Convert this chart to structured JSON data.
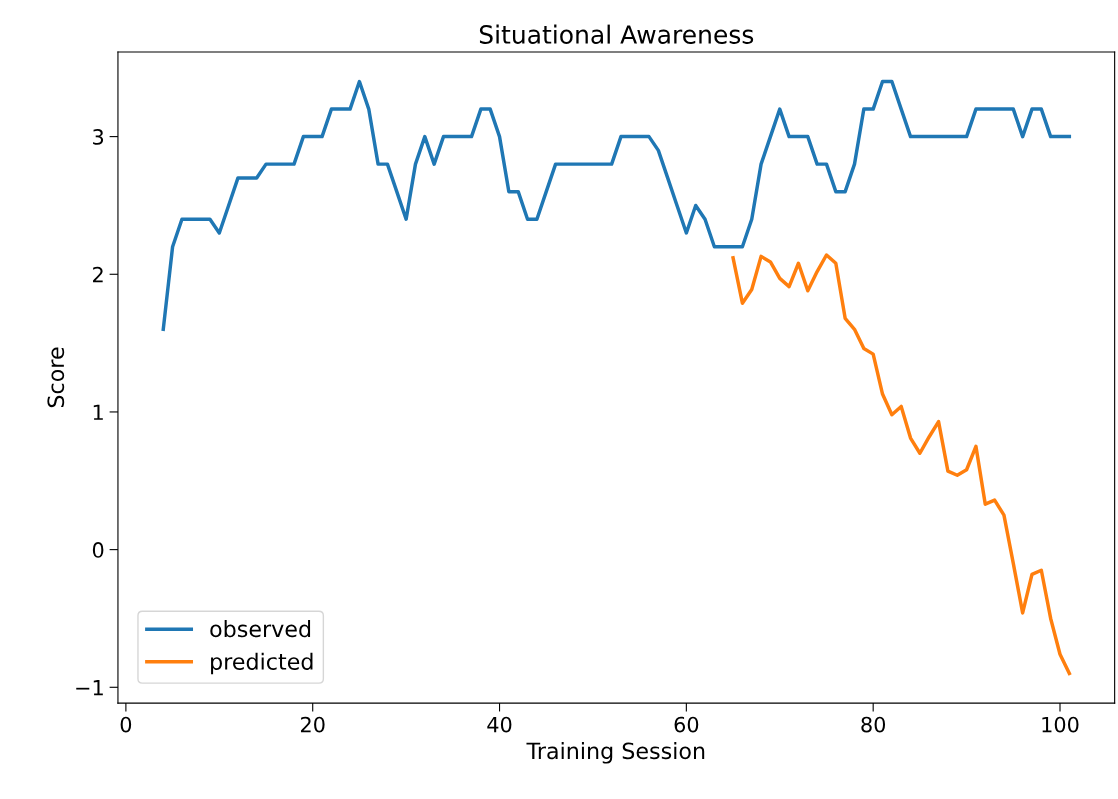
{
  "chart_data": {
    "type": "line",
    "title": "Situational Awareness",
    "xlabel": "Training Session",
    "ylabel": "Score",
    "xlim": [
      -0.85,
      105.85
    ],
    "xticks": [
      0,
      20,
      40,
      60,
      80,
      100
    ],
    "ylim": [
      -1.115,
      3.615
    ],
    "yticks": [
      {
        "value": -1,
        "label": "−1"
      },
      0,
      1,
      2,
      3
    ],
    "legend": "bottom left",
    "grid": false,
    "series": [
      {
        "name": "observed",
        "color": "#1f77b4",
        "x": [
          4,
          5,
          6,
          7,
          8,
          9,
          10,
          11,
          12,
          13,
          14,
          15,
          16,
          17,
          18,
          19,
          20,
          21,
          22,
          23,
          24,
          25,
          26,
          27,
          28,
          29,
          30,
          31,
          32,
          33,
          34,
          35,
          36,
          37,
          38,
          39,
          40,
          41,
          42,
          43,
          44,
          45,
          46,
          47,
          48,
          49,
          50,
          51,
          52,
          53,
          54,
          55,
          56,
          57,
          58,
          59,
          60,
          61,
          62,
          63,
          64,
          65,
          66,
          67,
          68,
          69,
          70,
          71,
          72,
          73,
          74,
          75,
          76,
          77,
          78,
          79,
          80,
          81,
          82,
          83,
          84,
          85,
          86,
          87,
          88,
          89,
          90,
          91,
          92,
          93,
          94,
          95,
          96,
          97,
          98,
          99,
          100,
          101
        ],
        "values": [
          1.6,
          2.2,
          2.4,
          2.4,
          2.4,
          2.4,
          2.3,
          2.5,
          2.7,
          2.7,
          2.7,
          2.8,
          2.8,
          2.8,
          2.8,
          3.0,
          3.0,
          3.0,
          3.2,
          3.2,
          3.2,
          3.4,
          3.2,
          2.8,
          2.8,
          2.6,
          2.4,
          2.8,
          3.0,
          2.8,
          3.0,
          3.0,
          3.0,
          3.0,
          3.2,
          3.2,
          3.0,
          2.6,
          2.6,
          2.4,
          2.4,
          2.6,
          2.8,
          2.8,
          2.8,
          2.8,
          2.8,
          2.8,
          2.8,
          3.0,
          3.0,
          3.0,
          3.0,
          2.9,
          2.7,
          2.5,
          2.3,
          2.5,
          2.4,
          2.2,
          2.2,
          2.2,
          2.2,
          2.4,
          2.8,
          3.0,
          3.2,
          3.0,
          3.0,
          3.0,
          2.8,
          2.8,
          2.6,
          2.6,
          2.8,
          3.2,
          3.2,
          3.4,
          3.4,
          3.2,
          3.0,
          3.0,
          3.0,
          3.0,
          3.0,
          3.0,
          3.0,
          3.2,
          3.2,
          3.2,
          3.2,
          3.2,
          3.0,
          3.2,
          3.2,
          3.0,
          3.0,
          3.0
        ]
      },
      {
        "name": "predicted",
        "color": "#ff7f0e",
        "x": [
          65,
          66,
          67,
          68,
          69,
          70,
          71,
          72,
          73,
          74,
          75,
          76,
          77,
          78,
          79,
          80,
          81,
          82,
          83,
          84,
          85,
          86,
          87,
          88,
          89,
          90,
          91,
          92,
          93,
          94,
          95,
          96,
          97,
          98,
          99,
          100,
          101
        ],
        "values": [
          2.12,
          1.79,
          1.89,
          2.13,
          2.09,
          1.97,
          1.91,
          2.08,
          1.88,
          2.02,
          2.14,
          2.08,
          1.68,
          1.6,
          1.46,
          1.42,
          1.13,
          0.98,
          1.04,
          0.81,
          0.7,
          0.82,
          0.93,
          0.57,
          0.54,
          0.58,
          0.75,
          0.33,
          0.36,
          0.25,
          -0.1,
          -0.46,
          -0.18,
          -0.15,
          -0.5,
          -0.76,
          -0.9
        ]
      }
    ]
  }
}
